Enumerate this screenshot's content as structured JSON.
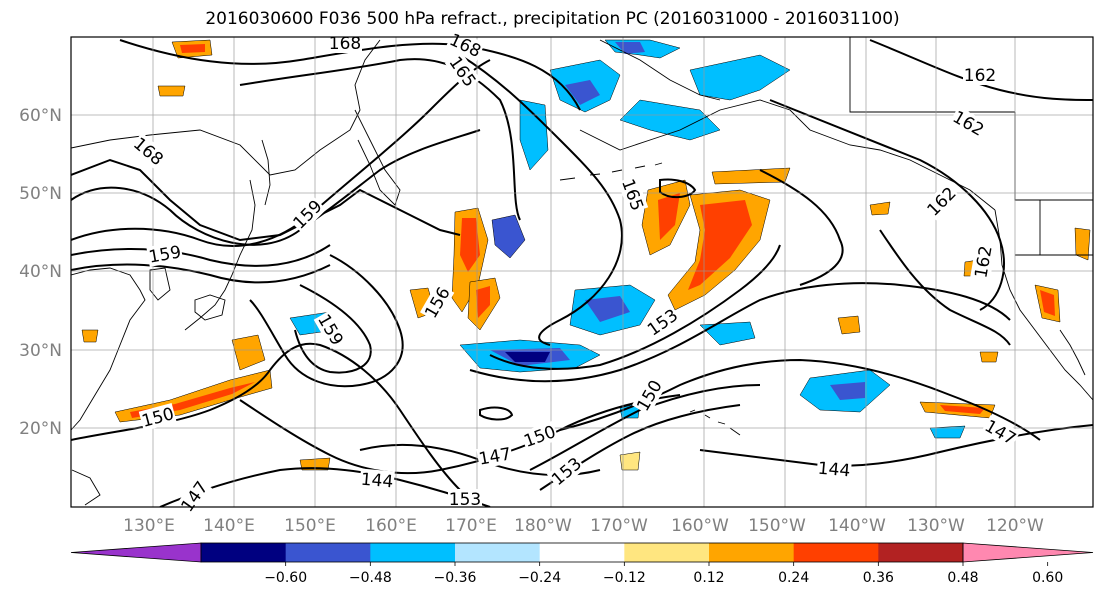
{
  "title": "2016030600 F036 500 hPa refract., precipitation PC (2016031000 - 2016031100)",
  "lat_labels": [
    "60°N",
    "50°N",
    "40°N",
    "30°N",
    "20°N"
  ],
  "lon_labels": [
    "130°E",
    "140°E",
    "150°E",
    "160°E",
    "170°E",
    "180°W",
    "170°W",
    "160°W",
    "150°W",
    "140°W",
    "130°W",
    "120°W"
  ],
  "contour_labels": [
    "168",
    "168",
    "165",
    "162",
    "162",
    "168",
    "159",
    "159",
    "165",
    "162",
    "156",
    "162",
    "159",
    "153",
    "150",
    "150",
    "150",
    "147",
    "147",
    "147",
    "144",
    "144",
    "153",
    "153"
  ],
  "colorbar": {
    "tick_labels": [
      "−0.60",
      "−0.48",
      "−0.36",
      "−0.24",
      "−0.12",
      "0.12",
      "0.24",
      "0.36",
      "0.48",
      "0.60"
    ],
    "colors": [
      "#9933cc",
      "#000080",
      "#3a55d0",
      "#00bfff",
      "#b3e5ff",
      "#ffffff",
      "#ffe680",
      "#ffa500",
      "#ff4000",
      "#b22222",
      "#ff88b0"
    ]
  },
  "colors": {
    "frame": "#000000",
    "grid": "#999999",
    "coast": "#000000",
    "contour": "#000000",
    "axis_label": "#808080"
  }
}
